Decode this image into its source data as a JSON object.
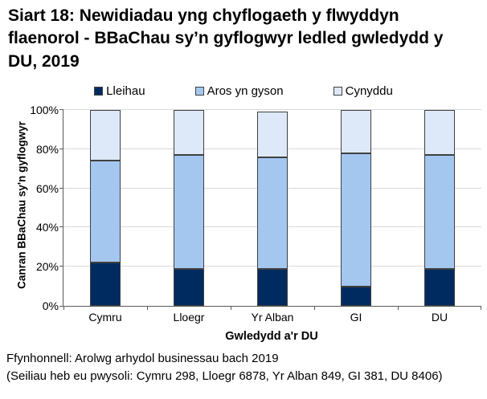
{
  "title": "Siart 18: Newidiadau yng chyflogaeth y flwyddyn flaenorol - BBaChau sy’n gyflogwyr ledled gwledydd y DU, 2019",
  "colors": {
    "lleihau": "#002B61",
    "aros": "#A4C7F0",
    "cynyddu": "#DDE9F8",
    "bar_border": "#404040",
    "gridline": "#D9D9D9",
    "axis": "#595959"
  },
  "chart_data": {
    "type": "bar",
    "subtype": "stacked-100",
    "categories": [
      "Cymru",
      "Lloegr",
      "Yr Alban",
      "GI",
      "DU"
    ],
    "series": [
      {
        "name": "Lleihau",
        "color": "#002B61",
        "values": [
          22,
          19,
          19,
          10,
          19
        ]
      },
      {
        "name": "Aros yn gyson",
        "color": "#A4C7F0",
        "values": [
          52,
          58,
          57,
          68,
          58
        ]
      },
      {
        "name": "Cynyddu",
        "color": "#DDE9F8",
        "values": [
          26,
          23,
          23,
          22,
          23
        ]
      }
    ],
    "xlabel": "Gwledydd a'r DU",
    "ylabel": "Canran BBaChau sy'n gyflogwyr",
    "ylim": [
      0,
      100
    ],
    "yticks": [
      "0%",
      "20%",
      "40%",
      "60%",
      "80%",
      "100%"
    ],
    "grid": true,
    "legend_position": "top"
  },
  "footer": {
    "line1": "Ffynhonnell: Arolwg arhydol businessau bach 2019",
    "line2": "(Seiliau heb eu pwysoli: Cymru 298, Lloegr 6878, Yr Alban 849, GI 381, DU 8406)"
  }
}
